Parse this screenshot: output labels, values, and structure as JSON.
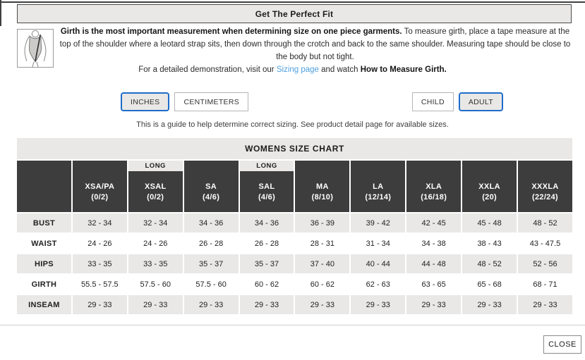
{
  "modal": {
    "title": "Get The Perfect Fit",
    "close_label": "CLOSE"
  },
  "intro": {
    "icon": "leotard-girth-measurement-diagram",
    "lead_bold": "Girth is the most important measurement when determining size on one piece garments.",
    "body": " To measure girth, place a tape measure at the top of the shoulder where a leotard strap sits, then down through the crotch and back to the same shoulder. Measuring tape should be close to the body but not tight.",
    "demo_prefix": "For a detailed demonstration, visit our ",
    "demo_link": "Sizing page",
    "demo_middle": " and watch ",
    "demo_bold": "How to Measure Girth."
  },
  "toggles": {
    "units": [
      {
        "label": "INCHES",
        "active": true
      },
      {
        "label": "CENTIMETERS",
        "active": false
      }
    ],
    "age": [
      {
        "label": "CHILD",
        "active": false
      },
      {
        "label": "ADULT",
        "active": true
      }
    ]
  },
  "note": "This is a guide to help determine correct sizing. See product detail page for available sizes.",
  "colors": {
    "accent_blue": "#1f6cc9",
    "link_blue": "#4d9fdf",
    "header_dark": "#3d3d3d",
    "band_gray": "#e9e8e6"
  },
  "size_chart": {
    "title": "WOMENS SIZE CHART",
    "long_label": "LONG",
    "columns": [
      {
        "code": "XSA/PA",
        "size": "(0/2)",
        "long": false
      },
      {
        "code": "XSAL",
        "size": "(0/2)",
        "long": true
      },
      {
        "code": "SA",
        "size": "(4/6)",
        "long": false
      },
      {
        "code": "SAL",
        "size": "(4/6)",
        "long": true
      },
      {
        "code": "MA",
        "size": "(8/10)",
        "long": false
      },
      {
        "code": "LA",
        "size": "(12/14)",
        "long": false
      },
      {
        "code": "XLA",
        "size": "(16/18)",
        "long": false
      },
      {
        "code": "XXLA",
        "size": "(20)",
        "long": false
      },
      {
        "code": "XXXLA",
        "size": "(22/24)",
        "long": false
      }
    ],
    "rows": [
      {
        "label": "BUST",
        "values": [
          "32 - 34",
          "32 - 34",
          "34 - 36",
          "34 - 36",
          "36 - 39",
          "39 - 42",
          "42 - 45",
          "45 - 48",
          "48 - 52"
        ]
      },
      {
        "label": "WAIST",
        "values": [
          "24 - 26",
          "24 - 26",
          "26 - 28",
          "26 - 28",
          "28 - 31",
          "31 - 34",
          "34 - 38",
          "38 - 43",
          "43 - 47.5"
        ]
      },
      {
        "label": "HIPS",
        "values": [
          "33 - 35",
          "33 - 35",
          "35 - 37",
          "35 - 37",
          "37 - 40",
          "40 - 44",
          "44 - 48",
          "48 - 52",
          "52 - 56"
        ]
      },
      {
        "label": "GIRTH",
        "values": [
          "55.5 - 57.5",
          "57.5 - 60",
          "57.5 - 60",
          "60 - 62",
          "60 - 62",
          "62 - 63",
          "63 - 65",
          "65 - 68",
          "68 - 71"
        ]
      },
      {
        "label": "INSEAM",
        "values": [
          "29 - 33",
          "29 - 33",
          "29 - 33",
          "29 - 33",
          "29 - 33",
          "29 - 33",
          "29 - 33",
          "29 - 33",
          "29 - 33"
        ]
      }
    ]
  }
}
